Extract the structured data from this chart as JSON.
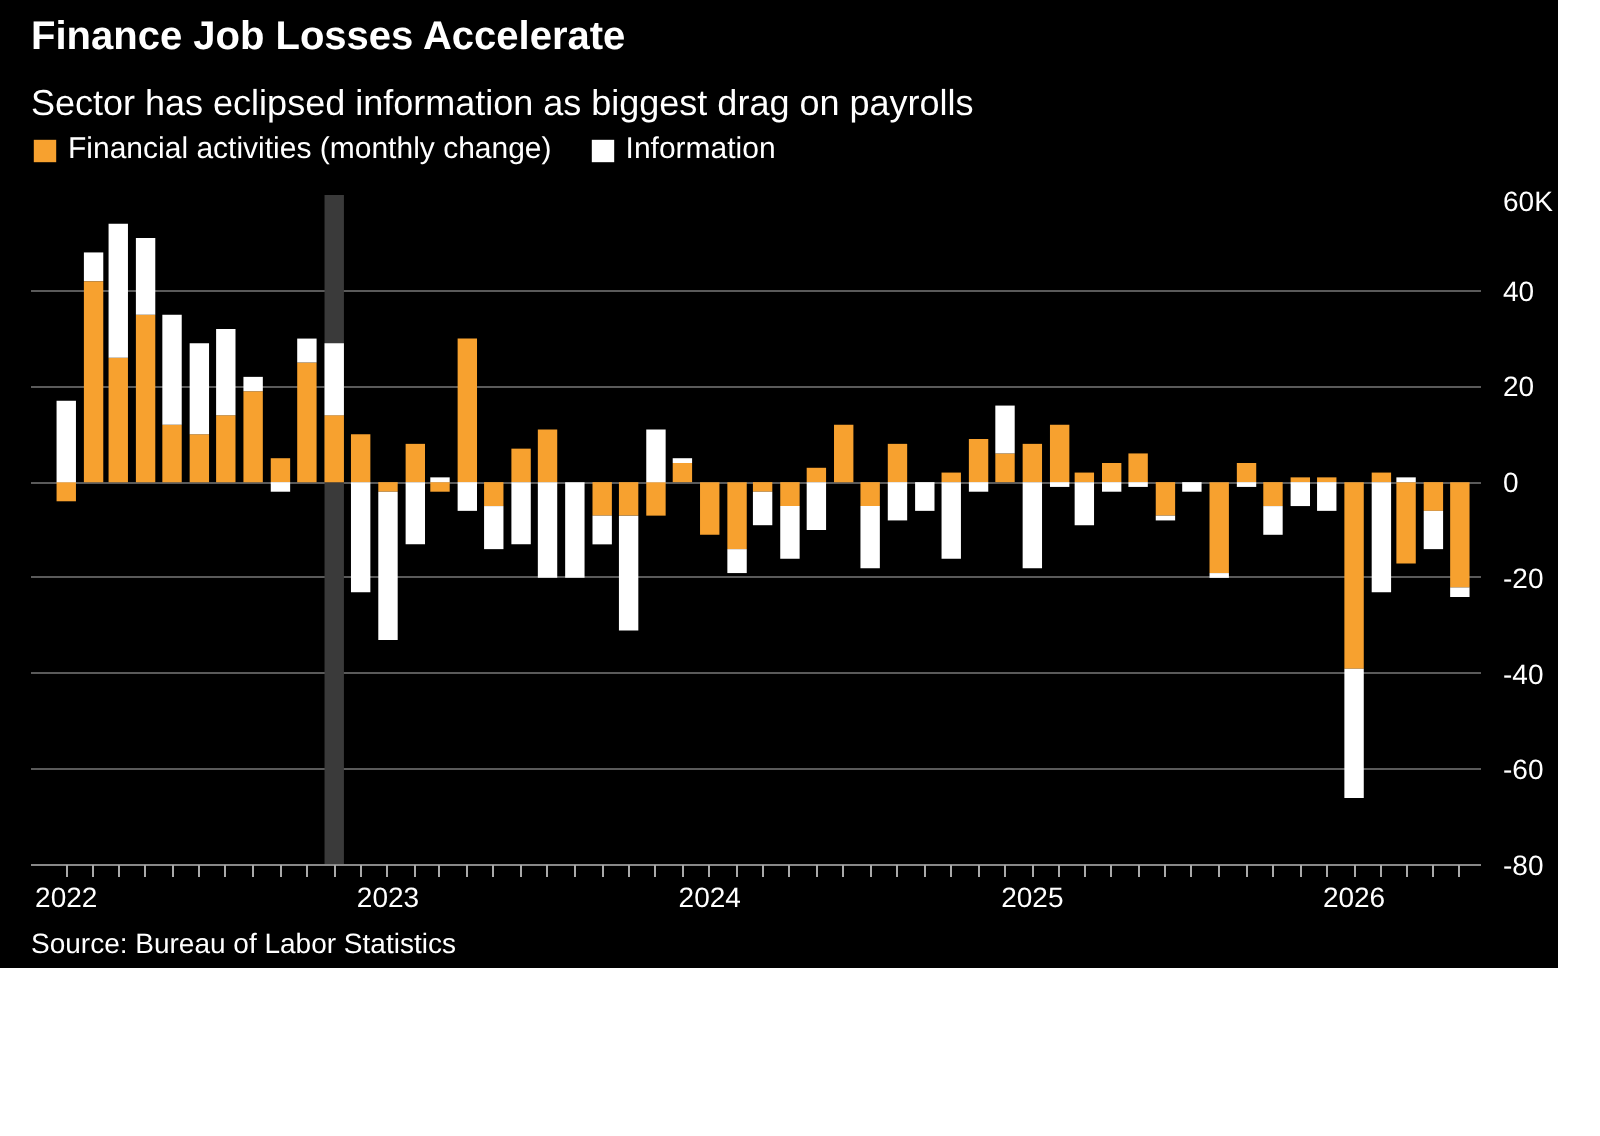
{
  "chart_data": {
    "type": "bar",
    "stacked": true,
    "title": "Finance Job Losses Accelerate",
    "subtitle": "Sector has eclipsed information as biggest drag on payrolls",
    "x": [
      "2022-01",
      "2022-02",
      "2022-03",
      "2022-04",
      "2022-05",
      "2022-06",
      "2022-07",
      "2022-08",
      "2022-09",
      "2022-10",
      "2022-11",
      "2022-12",
      "2023-01",
      "2023-02",
      "2023-03",
      "2023-04",
      "2023-05",
      "2023-06",
      "2023-07",
      "2023-08",
      "2023-09",
      "2023-10",
      "2023-11",
      "2023-12",
      "2024-01",
      "2024-02",
      "2024-03",
      "2024-04",
      "2024-05",
      "2024-06",
      "2024-07",
      "2024-08",
      "2024-09",
      "2024-10",
      "2024-11",
      "2024-12",
      "2025-01",
      "2025-02",
      "2025-03",
      "2025-04",
      "2025-05",
      "2025-06",
      "2025-07",
      "2025-08",
      "2025-09",
      "2025-10",
      "2025-11",
      "2025-12",
      "2026-01",
      "2026-02",
      "2026-03",
      "2026-04",
      "2026-05"
    ],
    "series": [
      {
        "name": "Financial activities (monthly change)",
        "color": "#f7a12f",
        "values": [
          -4,
          42,
          26,
          35,
          12,
          10,
          14,
          19,
          5,
          25,
          14,
          10,
          -2,
          8,
          -2,
          30,
          -5,
          7,
          11,
          0,
          -7,
          -7,
          -7,
          4,
          -11,
          -14,
          -2,
          -5,
          3,
          12,
          -5,
          8,
          0,
          2,
          9,
          6,
          8,
          12,
          2,
          4,
          6,
          -7,
          0,
          -19,
          4,
          -5,
          1,
          1,
          -39,
          2,
          -17,
          -6,
          -22
        ]
      },
      {
        "name": "Information",
        "color": "#ffffff",
        "values": [
          17,
          6,
          28,
          16,
          23,
          19,
          18,
          3,
          -2,
          5,
          15,
          -23,
          -31,
          -13,
          1,
          -6,
          -9,
          -13,
          -20,
          -20,
          -6,
          -24,
          11,
          1,
          0,
          -5,
          -7,
          -11,
          -10,
          0,
          -13,
          -8,
          -6,
          -16,
          -2,
          10,
          -18,
          -1,
          -9,
          -2,
          -1,
          -1,
          -2,
          -1,
          -1,
          -6,
          -5,
          -6,
          -27,
          -23,
          1,
          -8,
          -2
        ]
      }
    ],
    "bands": [
      {
        "axis": "x",
        "from": "2022-10-21",
        "to": "2022-11-12",
        "color": "#3a3a3a"
      }
    ],
    "xlim": [
      "2021-11-22",
      "2026-05-25"
    ],
    "xticks": [
      {
        "value": "2022-01",
        "label": "2022"
      },
      {
        "value": "2022-02",
        "label": null
      },
      {
        "value": "2022-03",
        "label": null
      },
      {
        "value": "2022-04",
        "label": null
      },
      {
        "value": "2022-05",
        "label": null
      },
      {
        "value": "2022-06",
        "label": null
      },
      {
        "value": "2022-07",
        "label": null
      },
      {
        "value": "2022-08",
        "label": null
      },
      {
        "value": "2022-09",
        "label": null
      },
      {
        "value": "2022-10",
        "label": null
      },
      {
        "value": "2022-11",
        "label": null
      },
      {
        "value": "2022-12",
        "label": null
      },
      {
        "value": "2023-01",
        "label": "2023"
      },
      {
        "value": "2023-02",
        "label": null
      },
      {
        "value": "2023-03",
        "label": null
      },
      {
        "value": "2023-04",
        "label": null
      },
      {
        "value": "2023-05",
        "label": null
      },
      {
        "value": "2023-06",
        "label": null
      },
      {
        "value": "2023-07",
        "label": null
      },
      {
        "value": "2023-08",
        "label": null
      },
      {
        "value": "2023-09",
        "label": null
      },
      {
        "value": "2023-10",
        "label": null
      },
      {
        "value": "2023-11",
        "label": null
      },
      {
        "value": "2023-12",
        "label": null
      },
      {
        "value": "2024-01",
        "label": "2024"
      },
      {
        "value": "2024-02",
        "label": null
      },
      {
        "value": "2024-03",
        "label": null
      },
      {
        "value": "2024-04",
        "label": null
      },
      {
        "value": "2024-05",
        "label": null
      },
      {
        "value": "2024-06",
        "label": null
      },
      {
        "value": "2024-07",
        "label": null
      },
      {
        "value": "2024-08",
        "label": null
      },
      {
        "value": "2024-09",
        "label": null
      },
      {
        "value": "2024-10",
        "label": null
      },
      {
        "value": "2024-11",
        "label": null
      },
      {
        "value": "2024-12",
        "label": null
      },
      {
        "value": "2025-01",
        "label": "2025"
      },
      {
        "value": "2025-02",
        "label": null
      },
      {
        "value": "2025-03",
        "label": null
      },
      {
        "value": "2025-04",
        "label": null
      },
      {
        "value": "2025-05",
        "label": null
      },
      {
        "value": "2025-06",
        "label": null
      },
      {
        "value": "2025-07",
        "label": null
      },
      {
        "value": "2025-08",
        "label": null
      },
      {
        "value": "2025-09",
        "label": null
      },
      {
        "value": "2025-10",
        "label": null
      },
      {
        "value": "2025-11",
        "label": null
      },
      {
        "value": "2025-12",
        "label": null
      },
      {
        "value": "2026-01",
        "label": "2026"
      },
      {
        "value": "2026-02",
        "label": null
      },
      {
        "value": "2026-03",
        "label": null
      },
      {
        "value": "2026-04",
        "label": null
      },
      {
        "value": "2026-05",
        "label": null
      }
    ],
    "ylim": [
      -80,
      60
    ],
    "yticks": [
      -80,
      -60,
      -40,
      -20,
      0,
      20,
      40,
      {
        "value": 60,
        "label": "60K"
      }
    ],
    "grid": "y",
    "legend": "top left",
    "annotations": [
      "Source: Bureau of Labor Statistics"
    ]
  }
}
